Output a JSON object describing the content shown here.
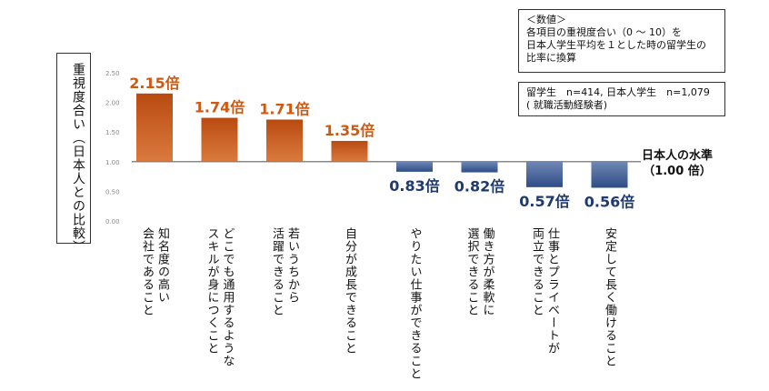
{
  "chart_data": {
    "type": "bar",
    "ylabel": "重視度合い（日本人との比較）",
    "ylim": [
      0,
      2.5
    ],
    "yticks": [
      "0.00",
      "0.50",
      "1.00",
      "1.50",
      "2.00",
      "2.50"
    ],
    "baseline": 1.0,
    "baseline_label": [
      "日本人の水準",
      "（1.00 倍）"
    ],
    "categories": [
      [
        "知名度の高い",
        "会社であること"
      ],
      [
        "どこでも通用するような",
        "スキルが身につくこと"
      ],
      [
        "若いうちから",
        "活躍できること"
      ],
      [
        "自分が成長できること"
      ],
      [
        "やりたい仕事ができること"
      ],
      [
        "働き方が柔軟に",
        "選択できること"
      ],
      [
        "仕事とプライベートが",
        "両立できること"
      ],
      [
        "安定して長く働けること"
      ]
    ],
    "values": [
      2.15,
      1.74,
      1.71,
      1.35,
      0.83,
      0.82,
      0.57,
      0.56
    ],
    "data_labels": [
      "2.15倍",
      "1.74倍",
      "1.71倍",
      "1.35倍",
      "0.83倍",
      "0.82倍",
      "0.57倍",
      "0.56倍"
    ],
    "colors": {
      "above": "#d4621c",
      "below": "#2e4d86",
      "label_above": "#cc5a14",
      "label_below": "#1f3a6e"
    }
  },
  "notes": {
    "method": [
      "＜数値＞",
      "各項目の重視度合い（0 ～ 10）を",
      "日本人学生平均を１とした時の留学生の",
      "比率に換算"
    ],
    "sample": [
      "留学生　n=414, 日本人学生　n=1,079",
      "( 就職活動経験者)"
    ]
  }
}
